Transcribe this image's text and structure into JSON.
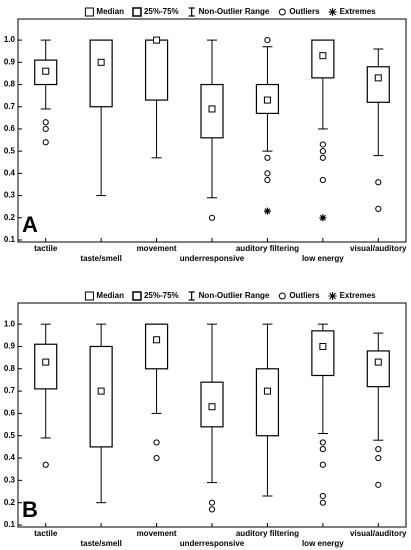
{
  "chart_data": [
    {
      "type": "box",
      "panel": "A",
      "legend": [
        "Median",
        "25%-75%",
        "Non-Outlier Range",
        "Outliers",
        "Extremes"
      ],
      "categories": [
        "tactile",
        "taste/smell",
        "movement",
        "underresponsive",
        "auditory filtering",
        "low energy",
        "visual/auditory"
      ],
      "boxes": [
        {
          "whisker_low": 0.69,
          "q1": 0.8,
          "median": 0.86,
          "q3": 0.91,
          "whisker_high": 1.0,
          "outliers": [
            0.63,
            0.6,
            0.54
          ]
        },
        {
          "whisker_low": 0.3,
          "q1": 0.7,
          "median": 0.9,
          "q3": 1.0,
          "whisker_high": 1.0
        },
        {
          "whisker_low": 0.47,
          "q1": 0.73,
          "median": 1.0,
          "q3": 1.0,
          "whisker_high": 1.0
        },
        {
          "whisker_low": 0.29,
          "q1": 0.56,
          "median": 0.69,
          "q3": 0.8,
          "whisker_high": 1.0,
          "outliers": [
            0.2
          ]
        },
        {
          "whisker_low": 0.5,
          "q1": 0.67,
          "median": 0.73,
          "q3": 0.8,
          "whisker_high": 0.97,
          "outliers": [
            1.0,
            0.47,
            0.4,
            0.37
          ],
          "extremes": [
            0.23
          ]
        },
        {
          "whisker_low": 0.6,
          "q1": 0.83,
          "median": 0.93,
          "q3": 1.0,
          "whisker_high": 1.0,
          "outliers": [
            0.53,
            0.5,
            0.47,
            0.37
          ],
          "extremes": [
            0.2
          ]
        },
        {
          "whisker_low": 0.48,
          "q1": 0.72,
          "median": 0.83,
          "q3": 0.88,
          "whisker_high": 0.96,
          "outliers": [
            0.36,
            0.24
          ]
        }
      ],
      "ylim": [
        0.1,
        1.05
      ],
      "yticks": [
        0.1,
        0.2,
        0.3,
        0.4,
        0.5,
        0.6,
        0.7,
        0.8,
        0.9,
        {
          "value": 1,
          "label": "1.0"
        }
      ]
    },
    {
      "type": "box",
      "panel": "B",
      "legend": [
        "Median",
        "25%-75%",
        "Non-Outlier Range",
        "Outliers",
        "Extremes"
      ],
      "categories": [
        "tactile",
        "taste/smell",
        "movement",
        "underresponsive",
        "auditory filtering",
        "low energy",
        "visual/auditory"
      ],
      "boxes": [
        {
          "whisker_low": 0.49,
          "q1": 0.71,
          "median": 0.83,
          "q3": 0.91,
          "whisker_high": 1.0,
          "outliers": [
            0.37
          ]
        },
        {
          "whisker_low": 0.2,
          "q1": 0.45,
          "median": 0.7,
          "q3": 0.9,
          "whisker_high": 1.0
        },
        {
          "whisker_low": 0.6,
          "q1": 0.8,
          "median": 0.93,
          "q3": 1.0,
          "whisker_high": 1.0,
          "outliers": [
            0.47,
            0.4
          ]
        },
        {
          "whisker_low": 0.29,
          "q1": 0.54,
          "median": 0.63,
          "q3": 0.74,
          "whisker_high": 1.0,
          "outliers": [
            0.2,
            0.17
          ]
        },
        {
          "whisker_low": 0.23,
          "q1": 0.5,
          "median": 0.7,
          "q3": 0.8,
          "whisker_high": 1.0
        },
        {
          "whisker_low": 0.51,
          "q1": 0.77,
          "median": 0.9,
          "q3": 0.97,
          "whisker_high": 1.0,
          "outliers": [
            0.47,
            0.44,
            0.37,
            0.23,
            0.2
          ]
        },
        {
          "whisker_low": 0.48,
          "q1": 0.72,
          "median": 0.83,
          "q3": 0.88,
          "whisker_high": 0.96,
          "outliers": [
            0.44,
            0.4,
            0.28
          ]
        }
      ],
      "ylim": [
        0.1,
        1.05
      ],
      "yticks": [
        0.1,
        0.2,
        0.3,
        0.4,
        0.5,
        0.6,
        0.7,
        0.8,
        0.9,
        {
          "value": 1,
          "label": "1.0"
        }
      ]
    }
  ]
}
